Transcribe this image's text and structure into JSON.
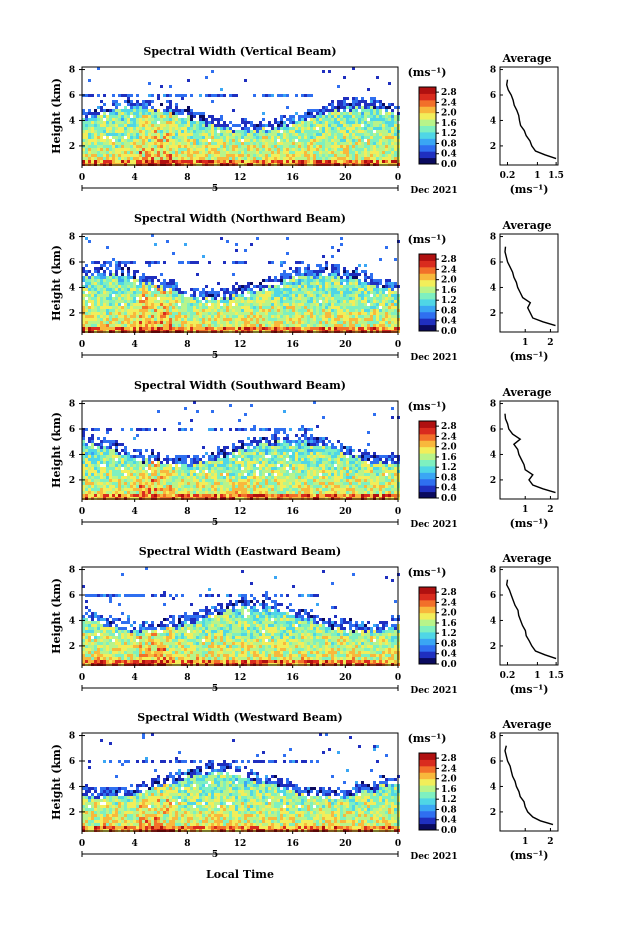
{
  "figure": {
    "xlabel": "Local Time",
    "colorbar_unit": "(ms⁻¹)",
    "avg_title": "Average",
    "avg_xlabel": "(ms⁻¹)",
    "date_label": "Dec 2021",
    "day_label": "5",
    "colormap": [
      "#0a0a5e",
      "#1f2fbf",
      "#2f6ff0",
      "#3aa6f4",
      "#4fd6e6",
      "#7ef0c0",
      "#b8f48a",
      "#f2ee5a",
      "#f8b83c",
      "#f2702a",
      "#d92b1e",
      "#b01010"
    ]
  },
  "chart_data": [
    {
      "type": "heatmap",
      "title": "Spectral Width (Vertical Beam)",
      "ylabel": "Height (km)",
      "x_ticks": [
        "0",
        "4",
        "8",
        "12",
        "16",
        "20",
        "0"
      ],
      "x_range": [
        0,
        24
      ],
      "y_ticks": [
        "2",
        "4",
        "6",
        "8"
      ],
      "y_range": [
        0.5,
        8.2
      ],
      "colorbar_ticks": [
        "0.0",
        "0.4",
        "0.8",
        "1.2",
        "1.6",
        "2.0",
        "2.4",
        "2.8"
      ],
      "colorbar_range": [
        0,
        3.0
      ],
      "avg_x_ticks": [
        "0.2",
        "1",
        "1.5"
      ],
      "avg_x_range": [
        0.0,
        1.55
      ],
      "avg_y_ticks": [
        "2",
        "4",
        "6",
        "8"
      ],
      "avg_profile": {
        "height_km": [
          1.0,
          1.3,
          1.6,
          2.0,
          2.4,
          2.8,
          3.2,
          3.6,
          4.0,
          4.4,
          4.8,
          5.2,
          5.6,
          6.0,
          6.4,
          6.8,
          7.2
        ],
        "width_ms": [
          1.5,
          1.2,
          0.95,
          0.85,
          0.8,
          0.7,
          0.65,
          0.55,
          0.52,
          0.5,
          0.45,
          0.38,
          0.35,
          0.3,
          0.22,
          0.18,
          0.2
        ]
      }
    },
    {
      "type": "heatmap",
      "title": "Spectral Width (Northward Beam)",
      "ylabel": "Height (km)",
      "x_ticks": [
        "0",
        "4",
        "8",
        "12",
        "16",
        "20",
        "0"
      ],
      "x_range": [
        0,
        24
      ],
      "y_ticks": [
        "2",
        "4",
        "6",
        "8"
      ],
      "y_range": [
        0.5,
        8.2
      ],
      "colorbar_ticks": [
        "0.0",
        "0.4",
        "0.8",
        "1.2",
        "1.6",
        "2.0",
        "2.4",
        "2.8"
      ],
      "colorbar_range": [
        0,
        3.0
      ],
      "avg_x_ticks": [
        "1",
        "2"
      ],
      "avg_x_range": [
        0.0,
        2.3
      ],
      "avg_y_ticks": [
        "2",
        "4",
        "6",
        "8"
      ],
      "avg_profile": {
        "height_km": [
          1.0,
          1.3,
          1.6,
          2.0,
          2.4,
          2.8,
          3.2,
          3.6,
          4.0,
          4.4,
          4.8,
          5.2,
          5.6,
          6.0,
          6.4,
          6.8,
          7.2
        ],
        "width_ms": [
          2.2,
          1.7,
          1.3,
          1.2,
          1.1,
          1.2,
          0.9,
          0.8,
          0.7,
          0.65,
          0.55,
          0.5,
          0.4,
          0.3,
          0.25,
          0.2,
          0.22
        ]
      }
    },
    {
      "type": "heatmap",
      "title": "Spectral Width (Southward Beam)",
      "ylabel": "Height (km)",
      "x_ticks": [
        "0",
        "4",
        "8",
        "12",
        "16",
        "20",
        "0"
      ],
      "x_range": [
        0,
        24
      ],
      "y_ticks": [
        "2",
        "4",
        "6",
        "8"
      ],
      "y_range": [
        0.5,
        8.2
      ],
      "colorbar_ticks": [
        "0.0",
        "0.4",
        "0.8",
        "1.2",
        "1.6",
        "2.0",
        "2.4",
        "2.8"
      ],
      "colorbar_range": [
        0,
        3.0
      ],
      "avg_x_ticks": [
        "1",
        "2"
      ],
      "avg_x_range": [
        0.0,
        2.3
      ],
      "avg_y_ticks": [
        "2",
        "4",
        "6",
        "8"
      ],
      "avg_profile": {
        "height_km": [
          1.0,
          1.3,
          1.6,
          2.0,
          2.4,
          2.8,
          3.2,
          3.6,
          4.0,
          4.4,
          4.8,
          5.2,
          5.6,
          6.0,
          6.4,
          6.8,
          7.2
        ],
        "width_ms": [
          2.2,
          1.7,
          1.3,
          1.15,
          1.3,
          1.0,
          0.95,
          0.85,
          0.75,
          0.7,
          0.55,
          0.8,
          0.5,
          0.35,
          0.3,
          0.22,
          0.2
        ]
      }
    },
    {
      "type": "heatmap",
      "title": "Spectral Width (Eastward Beam)",
      "ylabel": "Height (km)",
      "x_ticks": [
        "0",
        "4",
        "8",
        "12",
        "16",
        "20",
        "0"
      ],
      "x_range": [
        0,
        24
      ],
      "y_ticks": [
        "2",
        "4",
        "6",
        "8"
      ],
      "y_range": [
        0.5,
        8.2
      ],
      "colorbar_ticks": [
        "0.0",
        "0.4",
        "0.8",
        "1.2",
        "1.6",
        "2.0",
        "2.4",
        "2.8"
      ],
      "colorbar_range": [
        0,
        3.0
      ],
      "avg_x_ticks": [
        "0.2",
        "1",
        "1.5"
      ],
      "avg_x_range": [
        0.0,
        1.55
      ],
      "avg_y_ticks": [
        "2",
        "4",
        "6",
        "8"
      ],
      "avg_profile": {
        "height_km": [
          1.0,
          1.3,
          1.6,
          2.0,
          2.4,
          2.8,
          3.2,
          3.6,
          4.0,
          4.4,
          4.8,
          5.2,
          5.6,
          6.0,
          6.4,
          6.8,
          7.2
        ],
        "width_ms": [
          1.5,
          1.2,
          0.95,
          0.85,
          0.78,
          0.7,
          0.68,
          0.6,
          0.55,
          0.5,
          0.48,
          0.4,
          0.35,
          0.3,
          0.25,
          0.18,
          0.2
        ]
      }
    },
    {
      "type": "heatmap",
      "title": "Spectral Width (Westward Beam)",
      "ylabel": "Height (km)",
      "x_ticks": [
        "0",
        "4",
        "8",
        "12",
        "16",
        "20",
        "0"
      ],
      "x_range": [
        0,
        24
      ],
      "y_ticks": [
        "2",
        "4",
        "6",
        "8"
      ],
      "y_range": [
        0.5,
        8.2
      ],
      "colorbar_ticks": [
        "0.0",
        "0.4",
        "0.8",
        "1.2",
        "1.6",
        "2.0",
        "2.4",
        "2.8"
      ],
      "colorbar_range": [
        0,
        3.0
      ],
      "avg_x_ticks": [
        "1",
        "2"
      ],
      "avg_x_range": [
        0.0,
        2.3
      ],
      "avg_y_ticks": [
        "2",
        "4",
        "6",
        "8"
      ],
      "avg_profile": {
        "height_km": [
          1.0,
          1.3,
          1.6,
          2.0,
          2.4,
          2.8,
          3.2,
          3.6,
          4.0,
          4.4,
          4.8,
          5.2,
          5.6,
          6.0,
          6.4,
          6.8,
          7.2
        ],
        "width_ms": [
          2.1,
          1.6,
          1.3,
          1.1,
          1.0,
          0.95,
          0.8,
          0.75,
          0.65,
          0.6,
          0.5,
          0.45,
          0.4,
          0.3,
          0.25,
          0.2,
          0.25
        ]
      }
    }
  ]
}
